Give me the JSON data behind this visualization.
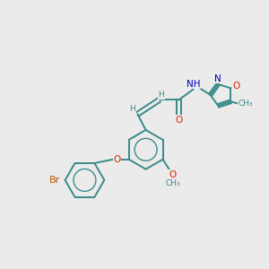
{
  "background_color": "#ebebeb",
  "bond_color": "#3a8a8a",
  "bond_width": 1.4,
  "atom_colors": {
    "O": "#dd2200",
    "N": "#0000bb",
    "Br": "#bb5500",
    "C": "#3a8a8a",
    "H": "#3a8a8a"
  },
  "figsize": [
    3.0,
    3.0
  ],
  "dpi": 100,
  "xlim": [
    -3.8,
    3.2
  ],
  "ylim": [
    -2.5,
    2.5
  ]
}
